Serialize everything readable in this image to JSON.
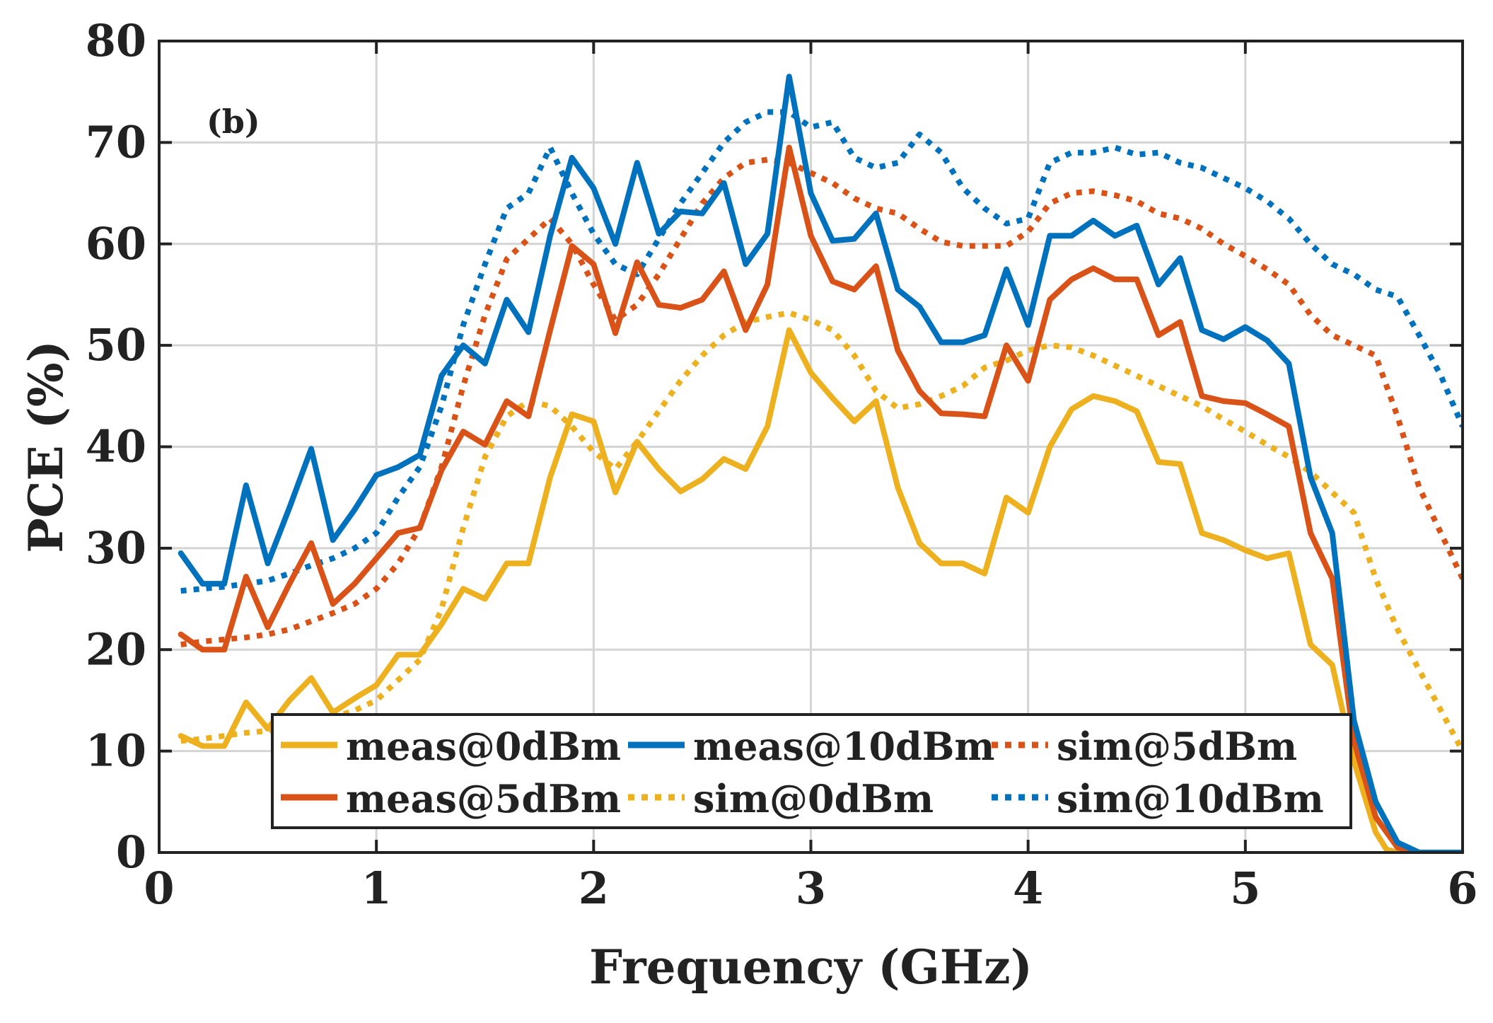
{
  "chart_data": {
    "type": "line",
    "panel_label": "(b)",
    "xlabel": "Frequency (GHz)",
    "ylabel": "PCE (%)",
    "xlim": [
      0,
      6
    ],
    "ylim": [
      0,
      80
    ],
    "xticks": [
      0,
      1,
      2,
      3,
      4,
      5,
      6
    ],
    "yticks": [
      0,
      10,
      20,
      30,
      40,
      50,
      60,
      70,
      80
    ],
    "grid": true,
    "legend_position": "bottom-center",
    "series": [
      {
        "name": "meas@0dBm",
        "style": "solid",
        "color": "#EDB120",
        "x": [
          0.1,
          0.2,
          0.3,
          0.4,
          0.5,
          0.6,
          0.7,
          0.8,
          0.9,
          1.0,
          1.1,
          1.2,
          1.3,
          1.4,
          1.5,
          1.6,
          1.7,
          1.8,
          1.9,
          2.0,
          2.1,
          2.2,
          2.3,
          2.4,
          2.5,
          2.6,
          2.7,
          2.8,
          2.9,
          3.0,
          3.1,
          3.2,
          3.3,
          3.4,
          3.5,
          3.6,
          3.7,
          3.8,
          3.9,
          4.0,
          4.1,
          4.2,
          4.3,
          4.4,
          4.5,
          4.6,
          4.7,
          4.8,
          4.9,
          5.0,
          5.1,
          5.2,
          5.3,
          5.4,
          5.5,
          5.6,
          5.65,
          5.7,
          5.8,
          5.9,
          6.0
        ],
        "y": [
          11.5,
          10.5,
          10.5,
          14.8,
          12.2,
          15.0,
          17.2,
          13.8,
          15.2,
          16.5,
          19.5,
          19.5,
          22.5,
          26.0,
          25.0,
          28.5,
          28.5,
          37.0,
          43.2,
          42.5,
          35.5,
          40.5,
          37.8,
          35.6,
          36.8,
          38.8,
          37.8,
          42.0,
          51.5,
          47.3,
          44.8,
          42.5,
          44.5,
          36.0,
          30.5,
          28.5,
          28.5,
          27.5,
          35.0,
          33.5,
          40.0,
          43.7,
          45.0,
          44.5,
          43.5,
          38.5,
          38.3,
          31.5,
          30.8,
          29.8,
          29.0,
          29.5,
          20.5,
          18.5,
          9.0,
          2.0,
          0.3,
          0.0,
          0.0,
          0.0,
          0.0
        ]
      },
      {
        "name": "meas@10dBm",
        "style": "solid",
        "color": "#0072BD",
        "x": [
          0.1,
          0.2,
          0.3,
          0.4,
          0.5,
          0.6,
          0.7,
          0.8,
          0.9,
          1.0,
          1.1,
          1.2,
          1.3,
          1.4,
          1.5,
          1.6,
          1.7,
          1.8,
          1.9,
          2.0,
          2.1,
          2.2,
          2.3,
          2.4,
          2.5,
          2.6,
          2.7,
          2.8,
          2.9,
          3.0,
          3.1,
          3.2,
          3.3,
          3.4,
          3.5,
          3.6,
          3.7,
          3.8,
          3.9,
          4.0,
          4.1,
          4.2,
          4.3,
          4.4,
          4.5,
          4.6,
          4.7,
          4.8,
          4.9,
          5.0,
          5.1,
          5.2,
          5.3,
          5.4,
          5.5,
          5.6,
          5.7,
          5.8,
          5.9,
          6.0
        ],
        "y": [
          29.5,
          26.5,
          26.5,
          36.2,
          28.5,
          34.0,
          39.8,
          30.8,
          33.8,
          37.2,
          38.0,
          39.2,
          47.0,
          50.0,
          48.2,
          54.5,
          51.3,
          60.8,
          68.5,
          65.5,
          60.0,
          68.0,
          61.0,
          63.2,
          63.0,
          66.0,
          58.0,
          61.0,
          76.5,
          65.0,
          60.3,
          60.5,
          63.0,
          55.5,
          53.8,
          50.3,
          50.3,
          51.0,
          57.5,
          52.0,
          60.8,
          60.8,
          62.3,
          60.8,
          61.8,
          56.0,
          58.6,
          51.5,
          50.6,
          51.8,
          50.5,
          48.2,
          37.0,
          31.5,
          13.0,
          5.0,
          1.0,
          0.0,
          0.0,
          0.0
        ]
      },
      {
        "name": "sim@5dBm",
        "style": "dotted",
        "color": "#D95319",
        "x": [
          0.1,
          0.2,
          0.3,
          0.4,
          0.5,
          0.6,
          0.7,
          0.8,
          0.9,
          1.0,
          1.1,
          1.2,
          1.3,
          1.4,
          1.5,
          1.6,
          1.7,
          1.8,
          1.9,
          2.0,
          2.1,
          2.2,
          2.3,
          2.4,
          2.5,
          2.6,
          2.7,
          2.8,
          2.9,
          3.0,
          3.1,
          3.2,
          3.3,
          3.4,
          3.5,
          3.6,
          3.7,
          3.8,
          3.9,
          4.0,
          4.1,
          4.2,
          4.3,
          4.4,
          4.5,
          4.6,
          4.7,
          4.8,
          4.9,
          5.0,
          5.1,
          5.2,
          5.3,
          5.4,
          5.5,
          5.6,
          5.7,
          5.8,
          5.9,
          6.0
        ],
        "y": [
          20.5,
          20.8,
          21.0,
          21.2,
          21.5,
          22.0,
          22.8,
          23.6,
          24.5,
          26.0,
          28.5,
          32.0,
          38.0,
          46.0,
          53.0,
          58.5,
          60.5,
          62.5,
          60.0,
          56.0,
          52.5,
          54.0,
          57.0,
          60.5,
          64.0,
          66.5,
          68.0,
          68.3,
          68.0,
          67.0,
          66.0,
          64.5,
          63.5,
          63.0,
          61.5,
          60.2,
          59.8,
          59.8,
          59.8,
          61.2,
          64.0,
          65.0,
          65.2,
          64.8,
          64.2,
          63.0,
          62.5,
          61.5,
          60.0,
          58.8,
          57.5,
          56.0,
          53.0,
          51.0,
          50.0,
          49.0,
          43.0,
          36.0,
          31.5,
          27.0
        ]
      },
      {
        "name": "meas@5dBm",
        "style": "solid",
        "color": "#D95319",
        "x": [
          0.1,
          0.2,
          0.3,
          0.4,
          0.5,
          0.6,
          0.7,
          0.8,
          0.9,
          1.0,
          1.1,
          1.2,
          1.3,
          1.4,
          1.5,
          1.6,
          1.7,
          1.8,
          1.9,
          2.0,
          2.1,
          2.2,
          2.3,
          2.4,
          2.5,
          2.6,
          2.7,
          2.8,
          2.9,
          3.0,
          3.1,
          3.2,
          3.3,
          3.4,
          3.5,
          3.6,
          3.7,
          3.8,
          3.9,
          4.0,
          4.1,
          4.2,
          4.3,
          4.4,
          4.5,
          4.6,
          4.7,
          4.8,
          4.9,
          5.0,
          5.1,
          5.2,
          5.3,
          5.4,
          5.5,
          5.6,
          5.7,
          5.8,
          5.9,
          6.0
        ],
        "y": [
          21.5,
          20.0,
          20.0,
          27.2,
          22.2,
          26.5,
          30.5,
          24.5,
          26.5,
          29.0,
          31.5,
          32.0,
          37.7,
          41.5,
          40.2,
          44.5,
          43.0,
          51.5,
          59.8,
          58.0,
          51.2,
          58.2,
          54.0,
          53.7,
          54.5,
          57.3,
          51.5,
          56.0,
          69.5,
          60.8,
          56.3,
          55.5,
          57.8,
          49.5,
          45.5,
          43.3,
          43.2,
          43.0,
          50.0,
          46.5,
          54.5,
          56.5,
          57.6,
          56.5,
          56.5,
          51.0,
          52.3,
          45.0,
          44.5,
          44.3,
          43.2,
          42.0,
          31.5,
          27.0,
          11.0,
          3.5,
          0.5,
          0.0,
          0.0,
          0.0
        ]
      },
      {
        "name": "sim@0dBm",
        "style": "dotted",
        "color": "#EDB120",
        "x": [
          0.1,
          0.2,
          0.3,
          0.4,
          0.5,
          0.6,
          0.7,
          0.8,
          0.9,
          1.0,
          1.1,
          1.2,
          1.3,
          1.4,
          1.5,
          1.6,
          1.7,
          1.8,
          1.9,
          2.0,
          2.1,
          2.2,
          2.3,
          2.4,
          2.5,
          2.6,
          2.7,
          2.8,
          2.9,
          3.0,
          3.1,
          3.2,
          3.3,
          3.4,
          3.5,
          3.6,
          3.7,
          3.8,
          3.9,
          4.0,
          4.1,
          4.2,
          4.3,
          4.4,
          4.5,
          4.6,
          4.7,
          4.8,
          4.9,
          5.0,
          5.1,
          5.2,
          5.3,
          5.4,
          5.5,
          5.6,
          5.7,
          5.8,
          5.9,
          6.0
        ],
        "y": [
          11.0,
          11.2,
          11.5,
          11.8,
          12.0,
          12.3,
          12.8,
          13.3,
          14.0,
          15.0,
          17.0,
          19.0,
          24.0,
          32.0,
          39.0,
          43.0,
          44.5,
          44.0,
          42.0,
          39.5,
          37.8,
          40.5,
          43.5,
          46.5,
          49.0,
          51.0,
          52.3,
          52.8,
          53.2,
          52.5,
          51.5,
          49.0,
          45.5,
          43.8,
          44.2,
          45.0,
          46.0,
          47.8,
          48.5,
          49.5,
          50.0,
          49.8,
          49.0,
          48.0,
          47.0,
          46.0,
          45.0,
          44.0,
          42.7,
          41.5,
          40.2,
          39.0,
          37.5,
          35.5,
          33.5,
          27.0,
          22.0,
          18.0,
          14.0,
          10.0
        ]
      },
      {
        "name": "sim@10dBm",
        "style": "dotted",
        "color": "#0072BD",
        "x": [
          0.1,
          0.2,
          0.3,
          0.4,
          0.5,
          0.6,
          0.7,
          0.8,
          0.9,
          1.0,
          1.1,
          1.2,
          1.3,
          1.4,
          1.5,
          1.6,
          1.7,
          1.8,
          1.9,
          2.0,
          2.1,
          2.2,
          2.3,
          2.4,
          2.5,
          2.6,
          2.7,
          2.8,
          2.9,
          3.0,
          3.1,
          3.2,
          3.3,
          3.4,
          3.5,
          3.6,
          3.7,
          3.8,
          3.9,
          4.0,
          4.1,
          4.2,
          4.3,
          4.4,
          4.5,
          4.6,
          4.7,
          4.8,
          4.9,
          5.0,
          5.1,
          5.2,
          5.3,
          5.4,
          5.5,
          5.6,
          5.7,
          5.8,
          5.9,
          6.0
        ],
        "y": [
          25.8,
          26.0,
          26.2,
          26.5,
          26.8,
          27.5,
          28.3,
          29.0,
          30.0,
          31.5,
          35.0,
          38.0,
          44.0,
          52.0,
          58.0,
          63.5,
          65.0,
          69.5,
          65.0,
          61.0,
          58.0,
          57.0,
          60.5,
          64.0,
          67.0,
          70.0,
          72.0,
          73.0,
          73.0,
          71.5,
          72.0,
          68.5,
          67.5,
          68.0,
          70.8,
          69.0,
          65.5,
          63.5,
          62.0,
          62.5,
          68.0,
          69.0,
          69.0,
          69.5,
          68.8,
          69.0,
          68.0,
          67.5,
          66.5,
          65.5,
          64.2,
          62.5,
          60.0,
          58.0,
          57.0,
          55.5,
          54.8,
          51.0,
          47.0,
          42.0
        ]
      }
    ]
  }
}
